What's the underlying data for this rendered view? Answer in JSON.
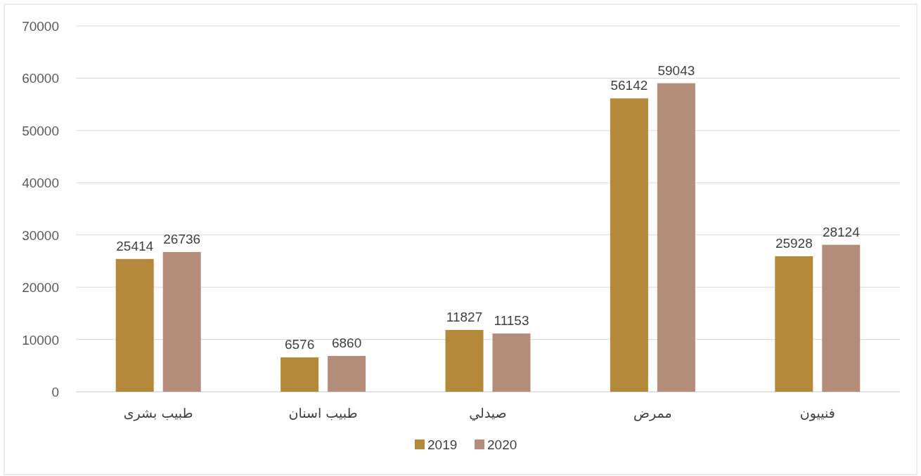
{
  "chart_data": {
    "type": "bar",
    "categories": [
      "طبيب بشرى",
      "طبيب اسنان",
      "صيدلي",
      "ممرض",
      "فنييون"
    ],
    "series": [
      {
        "name": "2019",
        "color": "#b5893a",
        "values": [
          25414,
          6576,
          11827,
          56142,
          25928
        ]
      },
      {
        "name": "2020",
        "color": "#b48c7a",
        "values": [
          26736,
          6860,
          11153,
          59043,
          28124
        ]
      }
    ],
    "ylim": [
      0,
      70000
    ],
    "yticks": [
      0,
      10000,
      20000,
      30000,
      40000,
      50000,
      60000,
      70000
    ],
    "grid": "y",
    "legend": "bottom",
    "data_labels": true
  }
}
